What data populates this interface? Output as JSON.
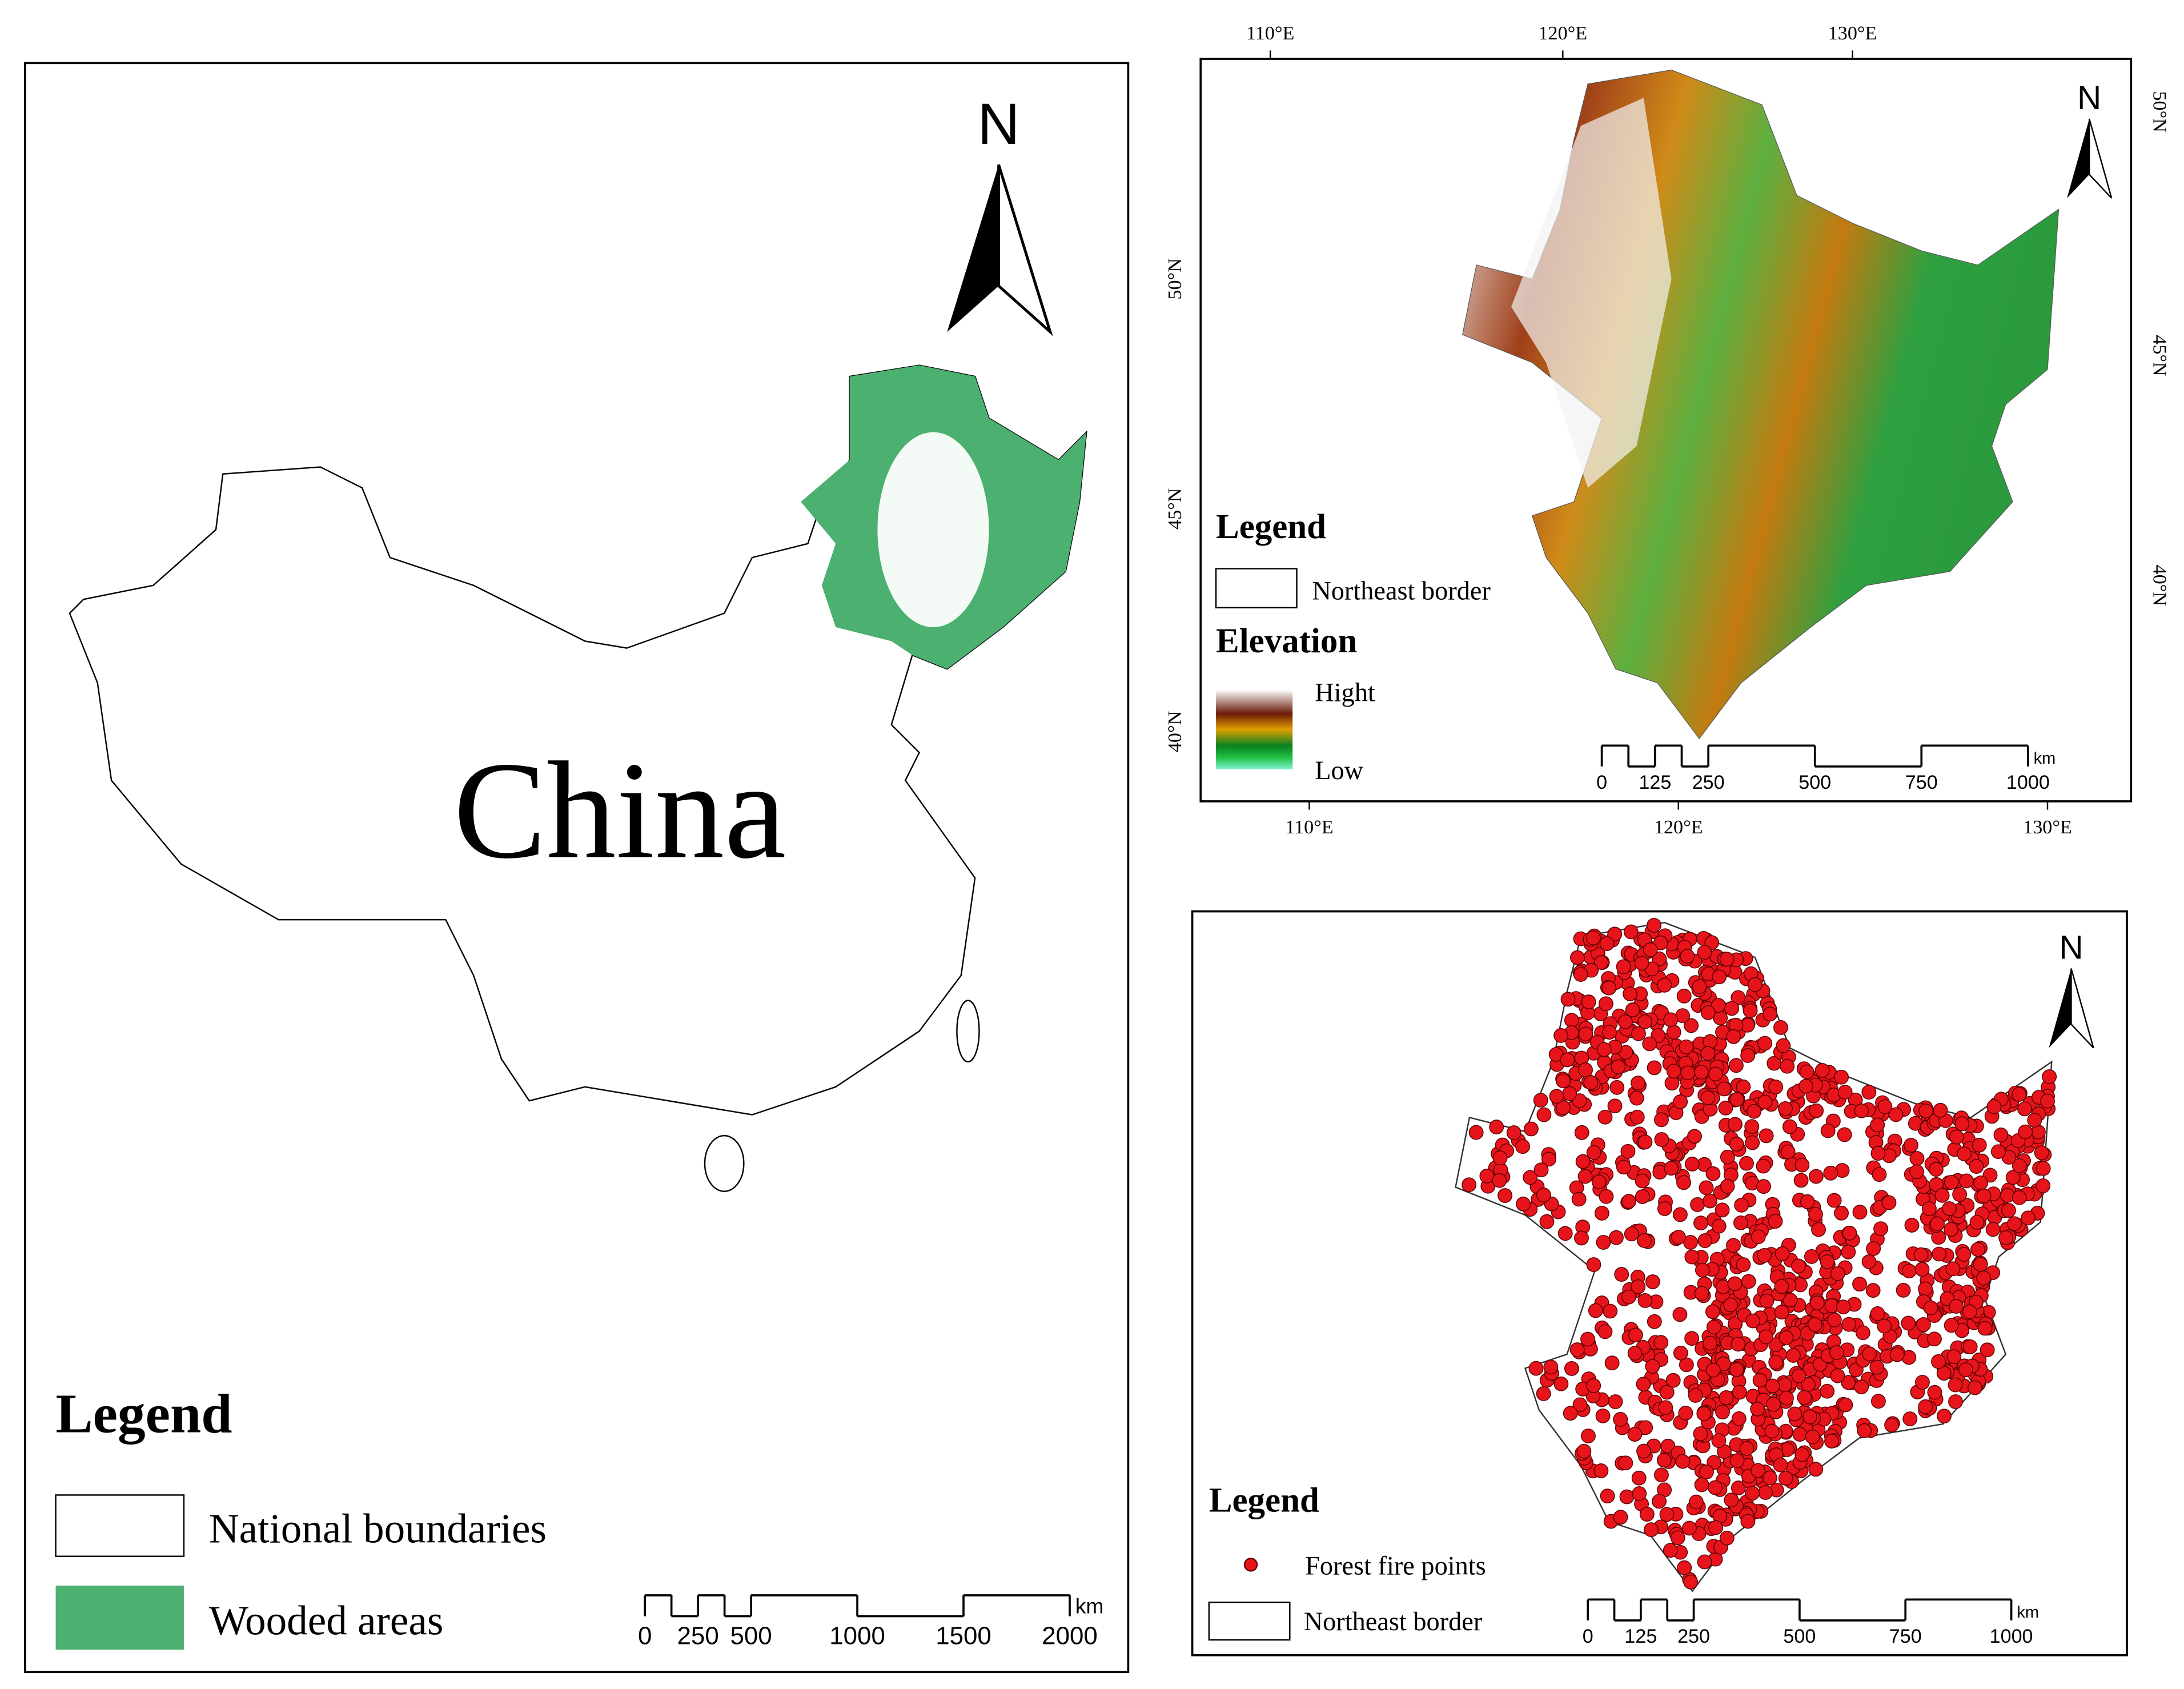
{
  "china_map": {
    "label": "China",
    "north": "N",
    "legend": {
      "title": "Legend",
      "items": [
        "National boundaries",
        "Wooded areas"
      ]
    },
    "scale": {
      "ticks": [
        "0",
        "250",
        "500",
        "1000",
        "1500",
        "2000"
      ],
      "unit": "km"
    }
  },
  "elevation_map": {
    "north": "N",
    "lon_top": [
      "110°E",
      "120°E",
      "130°E"
    ],
    "lon_bottom": [
      "110°E",
      "120°E",
      "130°E"
    ],
    "lat_left": [
      "50°N",
      "45°N",
      "40°N"
    ],
    "lat_right": [
      "50°N",
      "45°N",
      "40°N"
    ],
    "legend": {
      "title": "Legend",
      "items": [
        "Northeast border"
      ]
    },
    "elevation": {
      "title": "Elevation",
      "high": "Hight",
      "low": "Low"
    },
    "scale": {
      "ticks": [
        "0",
        "125",
        "250",
        "500",
        "750",
        "1000"
      ],
      "unit": "km"
    }
  },
  "fire_map": {
    "north": "N",
    "legend": {
      "title": "Legend",
      "items": [
        "Forest fire points",
        "Northeast border"
      ]
    },
    "scale": {
      "ticks": [
        "0",
        "125",
        "250",
        "500",
        "750",
        "1000"
      ],
      "unit": "km"
    }
  }
}
